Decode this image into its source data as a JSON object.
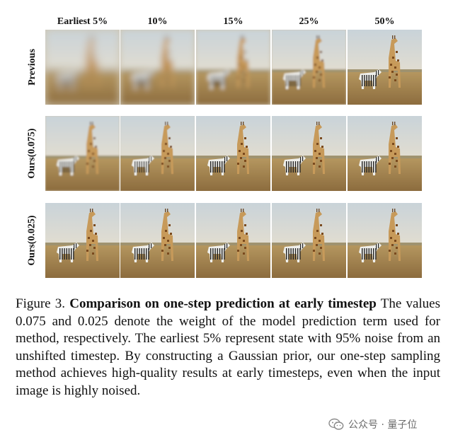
{
  "figure": {
    "columns": [
      "Earliest 5%",
      "10%",
      "15%",
      "25%",
      "50%"
    ],
    "rows": [
      {
        "label": "Previous",
        "blur": [
          6,
          4.5,
          3,
          1.2,
          0.3
        ]
      },
      {
        "label": "Ours(0.075)",
        "blur": [
          1.2,
          0.5,
          0.3,
          0.2,
          0.2
        ]
      },
      {
        "label": "Ours(0.025)",
        "blur": [
          0.2,
          0.2,
          0.2,
          0.2,
          0.2
        ]
      }
    ],
    "image_description": "giraffe and zebra on savanna"
  },
  "caption": {
    "figure_number": "Figure 3.",
    "title": "Comparison on one-step prediction at early timestep",
    "body": "The values 0.075 and 0.025 denote the weight of the model prediction term used for method, respectively. The earliest 5% represent state with 95% noise from an unshifted timestep. By constructing a Gaussian prior, our one-step sampling method achieves high-quality results at early timesteps, even when the input image is highly noised."
  },
  "watermark": {
    "text": "公众号 · 量子位",
    "icon": "wechat-icon",
    "color": "#8a8a8a"
  }
}
